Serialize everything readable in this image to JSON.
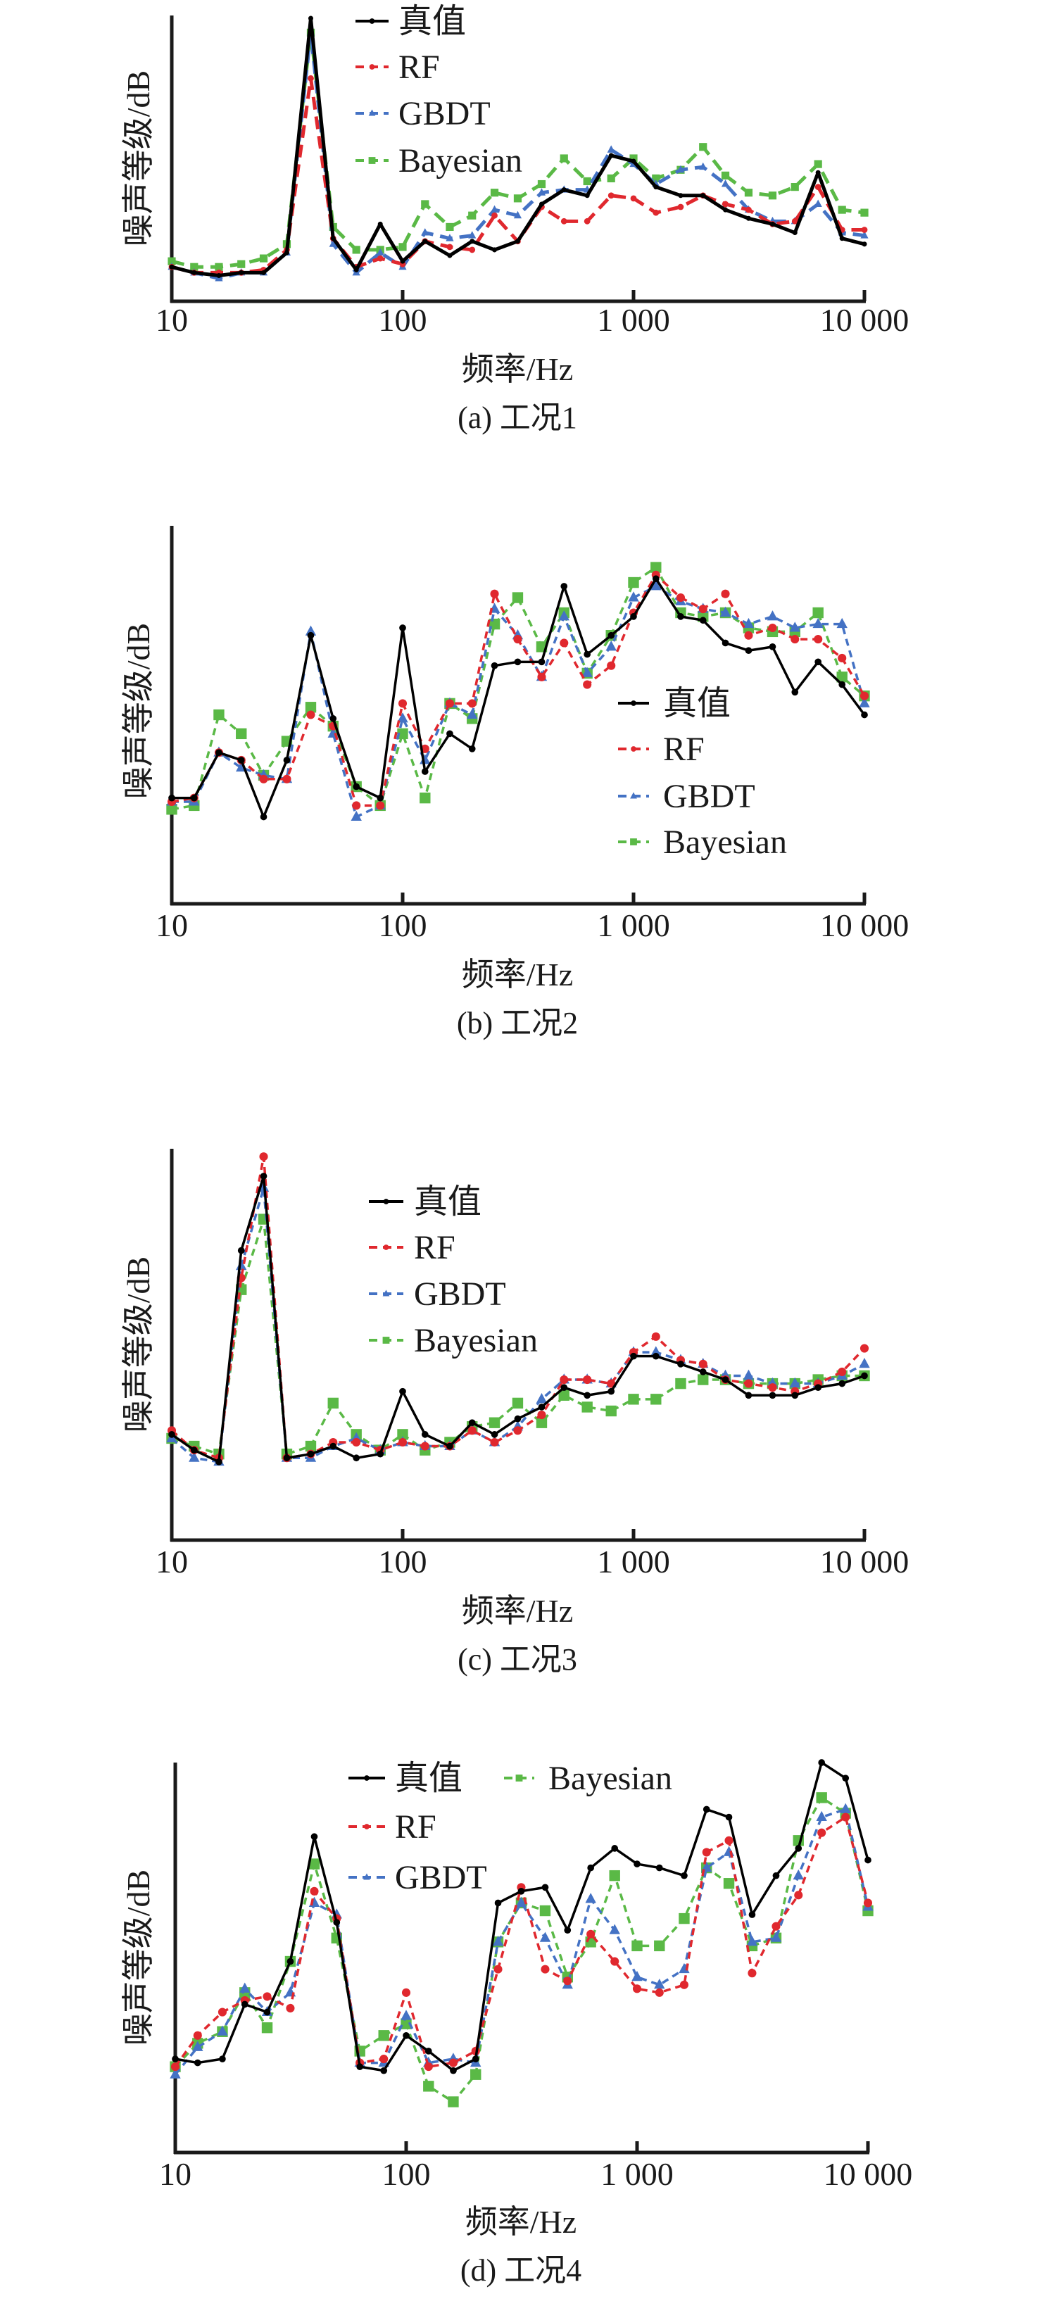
{
  "chart_data": [
    {
      "type": "line",
      "panel_id": "a",
      "caption": "(a) 工况1",
      "xlabel": "频率/Hz",
      "ylabel": "噪声等级/dB",
      "xscale": "log",
      "xlim": [
        10,
        10000
      ],
      "ylim": [
        0,
        100
      ],
      "y_units_note": "relative level (no y ticks shown)",
      "xticks": [
        10,
        100,
        1000,
        10000
      ],
      "xtick_labels": [
        "10",
        "100",
        "1 000",
        "10 000"
      ],
      "legend_position": "top-center",
      "legend_layout": "column",
      "x": [
        10,
        12.5,
        16,
        20,
        25,
        31.5,
        40,
        50,
        63,
        80,
        100,
        125,
        160,
        200,
        250,
        315,
        400,
        500,
        630,
        800,
        1000,
        1250,
        1600,
        2000,
        2500,
        3150,
        4000,
        5000,
        6300,
        8000,
        10000
      ],
      "series": [
        {
          "name": "真值",
          "color": "#000000",
          "style": "solid",
          "marker": "dot",
          "values": [
            12,
            10,
            9,
            10,
            10,
            17,
            99,
            22,
            11,
            27,
            14,
            21,
            16,
            21,
            18,
            21,
            34,
            39,
            37,
            51,
            49,
            40,
            37,
            37,
            32,
            29,
            27,
            24,
            45,
            22,
            20
          ]
        },
        {
          "name": "RF",
          "color": "#e0282e",
          "style": "dashed",
          "marker": "dot",
          "values": [
            12,
            10,
            10,
            10,
            11,
            18,
            78,
            22,
            12,
            15,
            13,
            21,
            19,
            18,
            30,
            21,
            33,
            28,
            28,
            37,
            36,
            31,
            33,
            37,
            34,
            32,
            27,
            28,
            40,
            25,
            25
          ]
        },
        {
          "name": "GBDT",
          "color": "#4472c4",
          "style": "dashed",
          "marker": "triangle",
          "values": [
            12,
            10,
            8,
            10,
            10,
            17,
            94,
            20,
            10,
            17,
            12,
            24,
            22,
            23,
            32,
            30,
            38,
            39,
            39,
            53,
            48,
            41,
            46,
            47,
            41,
            32,
            28,
            28,
            34,
            24,
            23
          ]
        },
        {
          "name": "Bayesian",
          "color": "#5ab946",
          "style": "dashed",
          "marker": "square",
          "values": [
            14,
            12,
            12,
            13,
            15,
            20,
            94,
            26,
            18,
            18,
            19,
            34,
            26,
            30,
            38,
            36,
            41,
            50,
            42,
            43,
            50,
            43,
            46,
            54,
            44,
            38,
            37,
            40,
            48,
            32,
            31
          ]
        }
      ]
    },
    {
      "type": "line",
      "panel_id": "b",
      "caption": "(b) 工况2",
      "xlabel": "频率/Hz",
      "ylabel": "噪声等级/dB",
      "xscale": "log",
      "xlim": [
        10,
        10000
      ],
      "ylim": [
        0,
        100
      ],
      "y_units_note": "relative level (no y ticks shown)",
      "xticks": [
        10,
        100,
        1000,
        10000
      ],
      "xtick_labels": [
        "10",
        "100",
        "1 000",
        "10 000"
      ],
      "legend_position": "lower-right",
      "legend_layout": "column",
      "x": [
        10,
        12.5,
        16,
        20,
        25,
        31.5,
        40,
        50,
        63,
        80,
        100,
        125,
        160,
        200,
        250,
        315,
        400,
        500,
        630,
        800,
        1000,
        1250,
        1600,
        2000,
        2500,
        3150,
        4000,
        5000,
        6300,
        8000,
        10000
      ],
      "series": [
        {
          "name": "真值",
          "color": "#000000",
          "style": "solid",
          "marker": "dot",
          "values": [
            28,
            28,
            40,
            38,
            23,
            38,
            71,
            49,
            31,
            28,
            73,
            35,
            45,
            41,
            63,
            64,
            64,
            84,
            66,
            71,
            76,
            86,
            76,
            75,
            69,
            67,
            68,
            56,
            64,
            58,
            50
          ]
        },
        {
          "name": "RF",
          "color": "#e0282e",
          "style": "dashed",
          "marker": "dot",
          "values": [
            27,
            28,
            40,
            38,
            33,
            33,
            50,
            47,
            26,
            26,
            53,
            41,
            53,
            53,
            82,
            70,
            60,
            69,
            58,
            63,
            77,
            87,
            81,
            78,
            82,
            71,
            73,
            70,
            70,
            65,
            55
          ]
        },
        {
          "name": "GBDT",
          "color": "#4472c4",
          "style": "dashed",
          "marker": "triangle",
          "values": [
            27,
            27,
            40,
            36,
            34,
            33,
            72,
            45,
            23,
            26,
            49,
            38,
            53,
            50,
            78,
            71,
            60,
            76,
            61,
            68,
            81,
            84,
            80,
            78,
            77,
            74,
            76,
            73,
            74,
            74,
            53
          ]
        },
        {
          "name": "Bayesian",
          "color": "#5ab946",
          "style": "dashed",
          "marker": "square",
          "values": [
            25,
            26,
            50,
            45,
            34,
            43,
            52,
            47,
            31,
            26,
            45,
            28,
            53,
            49,
            74,
            81,
            68,
            77,
            61,
            71,
            85,
            89,
            77,
            76,
            77,
            73,
            72,
            72,
            77,
            60,
            55
          ]
        }
      ]
    },
    {
      "type": "line",
      "panel_id": "c",
      "caption": "(c) 工况3",
      "xlabel": "频率/Hz",
      "ylabel": "噪声等级/dB",
      "xscale": "log",
      "xlim": [
        10,
        10000
      ],
      "ylim": [
        0,
        100
      ],
      "y_units_note": "relative level (no y ticks shown)",
      "xticks": [
        10,
        100,
        1000,
        10000
      ],
      "xtick_labels": [
        "10",
        "100",
        "1 000",
        "10 000"
      ],
      "legend_position": "top-center",
      "legend_layout": "column",
      "x": [
        10,
        12.5,
        16,
        20,
        25,
        31.5,
        40,
        50,
        63,
        80,
        100,
        125,
        160,
        200,
        250,
        315,
        400,
        500,
        630,
        800,
        1000,
        1250,
        1600,
        2000,
        2500,
        3150,
        4000,
        5000,
        6300,
        8000,
        10000
      ],
      "series": [
        {
          "name": "真值",
          "color": "#000000",
          "style": "solid",
          "marker": "dot",
          "values": [
            27,
            23,
            20,
            74,
            93,
            21,
            22,
            24,
            21,
            22,
            38,
            27,
            24,
            30,
            27,
            31,
            34,
            39,
            37,
            38,
            47,
            47,
            45,
            43,
            41,
            37,
            37,
            37,
            39,
            40,
            42
          ]
        },
        {
          "name": "RF",
          "color": "#e0282e",
          "style": "dashed",
          "marker": "dot",
          "values": [
            28,
            23,
            21,
            67,
            98,
            21,
            22,
            25,
            25,
            23,
            25,
            24,
            24,
            28,
            25,
            28,
            32,
            41,
            41,
            40,
            48,
            52,
            46,
            45,
            41,
            40,
            39,
            38,
            40,
            43,
            49
          ]
        },
        {
          "name": "GBDT",
          "color": "#4472c4",
          "style": "dashed",
          "marker": "triangle",
          "values": [
            26,
            21,
            20,
            70,
            90,
            21,
            21,
            24,
            26,
            23,
            25,
            24,
            24,
            28,
            25,
            29,
            36,
            41,
            41,
            40,
            48,
            48,
            46,
            45,
            42,
            42,
            40,
            40,
            40,
            42,
            45
          ]
        },
        {
          "name": "Bayesian",
          "color": "#5ab946",
          "style": "dashed",
          "marker": "square",
          "values": [
            26,
            24,
            22,
            64,
            82,
            22,
            24,
            35,
            27,
            23,
            27,
            23,
            25,
            29,
            30,
            35,
            30,
            37,
            34,
            33,
            36,
            36,
            40,
            41,
            41,
            40,
            40,
            40,
            41,
            42,
            42
          ]
        }
      ]
    },
    {
      "type": "line",
      "panel_id": "d",
      "caption": "(d) 工况4",
      "xlabel": "频率/Hz",
      "ylabel": "噪声等级/dB",
      "xscale": "log",
      "xlim": [
        10,
        10000
      ],
      "ylim": [
        0,
        100
      ],
      "y_units_note": "relative level (no y ticks shown)",
      "xticks": [
        10,
        100,
        1000,
        10000
      ],
      "xtick_labels": [
        "10",
        "100",
        "1 000",
        "10 000"
      ],
      "legend_position": "top-center",
      "legend_layout": "two-column",
      "x": [
        10,
        12.5,
        16,
        20,
        25,
        31.5,
        40,
        50,
        63,
        80,
        100,
        125,
        160,
        200,
        250,
        315,
        400,
        500,
        630,
        800,
        1000,
        1250,
        1600,
        2000,
        2500,
        3150,
        4000,
        5000,
        6300,
        8000,
        10000
      ],
      "series": [
        {
          "name": "真值",
          "color": "#000000",
          "style": "solid",
          "marker": "dot",
          "values": [
            24,
            23,
            24,
            38,
            36,
            49,
            81,
            59,
            22,
            21,
            30,
            26,
            21,
            24,
            64,
            67,
            68,
            57,
            73,
            78,
            74,
            73,
            71,
            88,
            86,
            61,
            71,
            78,
            100,
            96,
            75
          ]
        },
        {
          "name": "RF",
          "color": "#e0282e",
          "style": "dashed",
          "marker": "dot",
          "values": [
            22,
            30,
            36,
            39,
            40,
            37,
            67,
            60,
            23,
            24,
            41,
            22,
            23,
            26,
            47,
            68,
            47,
            44,
            56,
            49,
            42,
            41,
            43,
            77,
            80,
            46,
            58,
            66,
            82,
            86,
            64
          ]
        },
        {
          "name": "GBDT",
          "color": "#4472c4",
          "style": "dashed",
          "marker": "triangle",
          "values": [
            20,
            27,
            31,
            42,
            36,
            41,
            64,
            61,
            23,
            23,
            35,
            23,
            24,
            23,
            54,
            64,
            55,
            43,
            65,
            57,
            45,
            43,
            47,
            73,
            77,
            54,
            55,
            71,
            86,
            88,
            63
          ]
        },
        {
          "name": "Bayesian",
          "color": "#5ab946",
          "style": "dashed",
          "marker": "square",
          "values": [
            22,
            28,
            31,
            41,
            32,
            49,
            74,
            55,
            26,
            30,
            33,
            17,
            13,
            20,
            54,
            64,
            62,
            45,
            54,
            71,
            53,
            53,
            60,
            73,
            69,
            53,
            55,
            80,
            91,
            87,
            62
          ]
        }
      ]
    }
  ]
}
